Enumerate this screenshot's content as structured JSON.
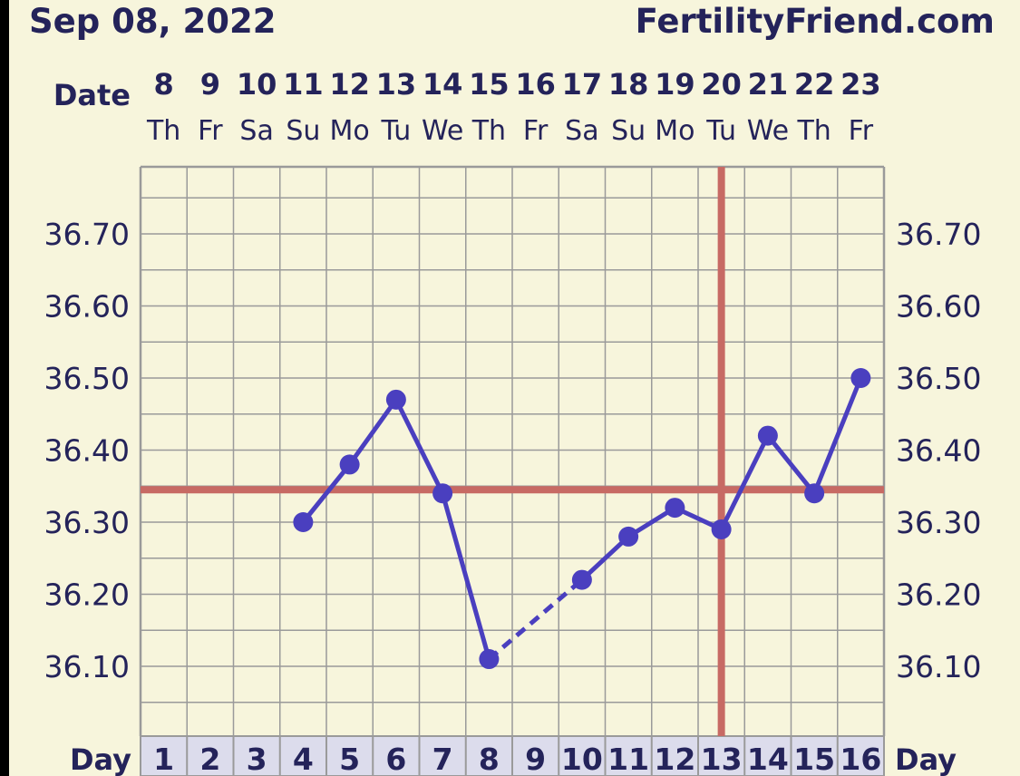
{
  "header": {
    "date": "Sep 08, 2022",
    "site": "FertilityFriend.com"
  },
  "colors": {
    "background": "#f7f5dc",
    "text": "#24235a",
    "grid": "#9a9a9a",
    "line": "#4a3fbf",
    "coverline": "#c76a64",
    "daybox": "#dcdcec"
  },
  "chart_data": {
    "type": "line",
    "date_label": "Date",
    "day_label": "Day",
    "dates": [
      "8",
      "9",
      "10",
      "11",
      "12",
      "13",
      "14",
      "15",
      "16",
      "17",
      "18",
      "19",
      "20",
      "21",
      "22",
      "23"
    ],
    "weekdays": [
      "Th",
      "Fr",
      "Sa",
      "Su",
      "Mo",
      "Tu",
      "We",
      "Th",
      "Fr",
      "Sa",
      "Su",
      "Mo",
      "Tu",
      "We",
      "Th",
      "Fr"
    ],
    "days": [
      "1",
      "2",
      "3",
      "4",
      "5",
      "6",
      "7",
      "8",
      "9",
      "10",
      "11",
      "12",
      "13",
      "14",
      "15",
      "16"
    ],
    "y_tick_labels": [
      "36.70",
      "36.60",
      "36.50",
      "36.40",
      "36.30",
      "36.20",
      "36.10"
    ],
    "ylim": [
      36.0,
      36.79
    ],
    "series": [
      {
        "values": [
          null,
          null,
          null,
          36.3,
          36.38,
          36.47,
          36.34,
          36.11,
          null,
          36.22,
          36.28,
          36.32,
          36.29,
          36.42,
          36.34,
          36.5
        ]
      }
    ],
    "dashed_gap": {
      "from_day": 8,
      "to_day": 10
    },
    "coverline": 36.345,
    "ovulation_day": 13,
    "grid": true
  }
}
